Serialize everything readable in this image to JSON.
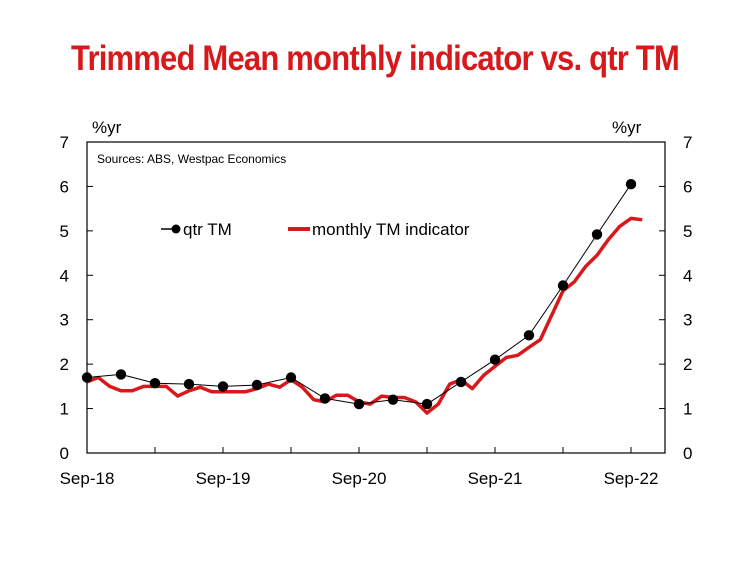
{
  "chart_data": {
    "type": "line",
    "title": "Trimmed Mean monthly indicator vs. qtr TM",
    "source_note": "Sources: ABS, Westpac Economics",
    "y_unit_left": "%yr",
    "y_unit_right": "%yr",
    "ylim": [
      0,
      7
    ],
    "yticks": [
      "0",
      "1",
      "2",
      "3",
      "4",
      "5",
      "6",
      "7"
    ],
    "xlim": [
      "2018-09",
      "2022-12"
    ],
    "xtick_labels": [
      "Sep-18",
      "Sep-19",
      "Sep-20",
      "Sep-21",
      "Sep-22"
    ],
    "grid": false,
    "legend_position": "upper-left",
    "colors": {
      "title": "#d7191c",
      "monthly": "#d7191c",
      "qtr": "#000000"
    },
    "series": [
      {
        "name": "qtr TM",
        "style": "line-markers",
        "x": [
          "2018-09",
          "2018-12",
          "2019-03",
          "2019-06",
          "2019-09",
          "2019-12",
          "2020-03",
          "2020-06",
          "2020-09",
          "2020-12",
          "2021-03",
          "2021-06",
          "2021-09",
          "2021-12",
          "2022-03",
          "2022-06",
          "2022-09"
        ],
        "values": [
          1.7,
          1.77,
          1.57,
          1.55,
          1.5,
          1.53,
          1.7,
          1.23,
          1.1,
          1.2,
          1.1,
          1.6,
          2.1,
          2.65,
          3.77,
          4.92,
          6.05
        ]
      },
      {
        "name": "monthly TM indicator",
        "style": "thick-line",
        "x": [
          "2018-09",
          "2018-10",
          "2018-11",
          "2018-12",
          "2019-01",
          "2019-02",
          "2019-03",
          "2019-04",
          "2019-05",
          "2019-06",
          "2019-07",
          "2019-08",
          "2019-09",
          "2019-10",
          "2019-11",
          "2019-12",
          "2020-01",
          "2020-02",
          "2020-03",
          "2020-04",
          "2020-05",
          "2020-06",
          "2020-07",
          "2020-08",
          "2020-09",
          "2020-10",
          "2020-11",
          "2020-12",
          "2021-01",
          "2021-02",
          "2021-03",
          "2021-04",
          "2021-05",
          "2021-06",
          "2021-07",
          "2021-08",
          "2021-09",
          "2021-10",
          "2021-11",
          "2021-12",
          "2022-01",
          "2022-02",
          "2022-03",
          "2022-04",
          "2022-05",
          "2022-06",
          "2022-07",
          "2022-08",
          "2022-09",
          "2022-10"
        ],
        "values": [
          1.6,
          1.7,
          1.5,
          1.4,
          1.4,
          1.5,
          1.5,
          1.5,
          1.28,
          1.4,
          1.48,
          1.38,
          1.38,
          1.38,
          1.38,
          1.45,
          1.55,
          1.48,
          1.65,
          1.48,
          1.2,
          1.15,
          1.3,
          1.3,
          1.15,
          1.1,
          1.28,
          1.25,
          1.25,
          1.15,
          0.9,
          1.1,
          1.55,
          1.65,
          1.45,
          1.75,
          1.95,
          2.15,
          2.2,
          2.38,
          2.55,
          3.1,
          3.65,
          3.85,
          4.2,
          4.45,
          4.8,
          5.1,
          5.28,
          5.25
        ]
      }
    ]
  }
}
